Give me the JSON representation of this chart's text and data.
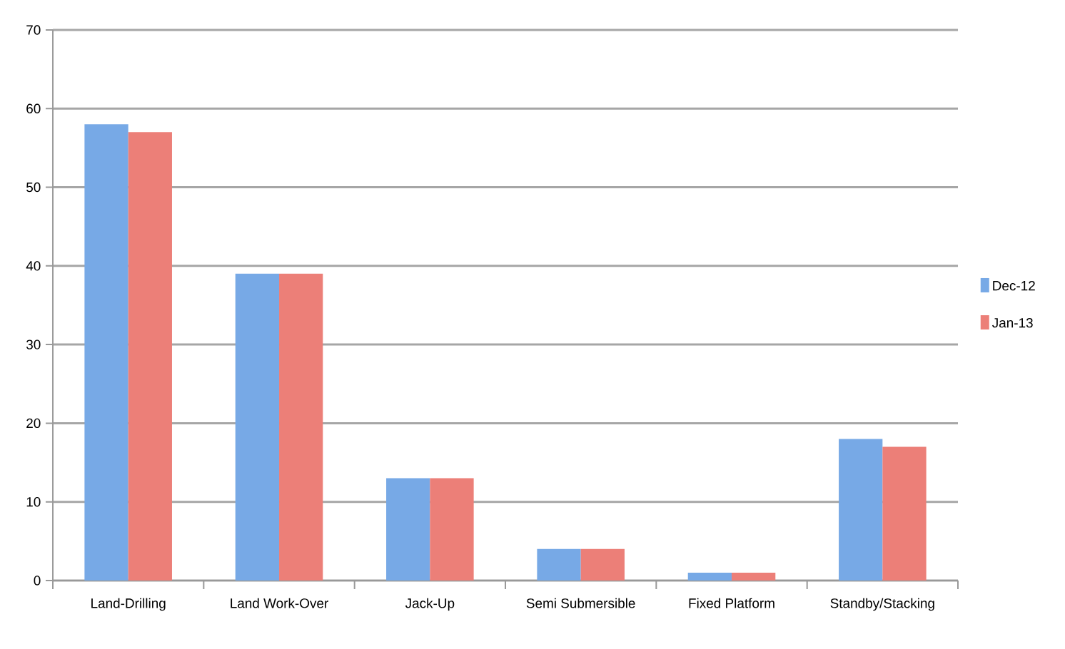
{
  "chart_data": {
    "type": "bar",
    "categories": [
      "Land-Drilling",
      "Land Work-Over",
      "Jack-Up",
      "Semi Submersible",
      "Fixed Platform",
      "Standby/Stacking"
    ],
    "series": [
      {
        "name": "Dec-12",
        "color": "#77a9e6",
        "values": [
          58,
          39,
          13,
          4,
          1,
          18
        ]
      },
      {
        "name": "Jan-13",
        "color": "#ec7f78",
        "values": [
          57,
          39,
          13,
          4,
          1,
          17
        ]
      }
    ],
    "ylim": [
      0,
      70
    ],
    "yticks": [
      0,
      10,
      20,
      30,
      40,
      50,
      60,
      70
    ],
    "grid": "y",
    "legend": "right"
  }
}
